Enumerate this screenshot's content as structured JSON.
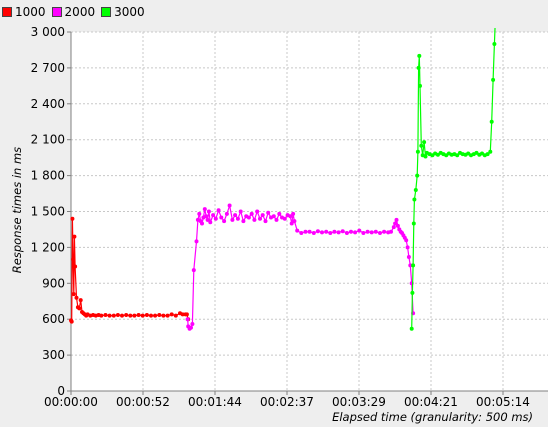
{
  "chart_data": {
    "type": "line",
    "ylabel": "Response times in ms",
    "xlabel": "Elapsed time (granularity: 500 ms)",
    "ylim": [
      0,
      3000
    ],
    "xlim": [
      0,
      364
    ],
    "yticks": [
      0,
      300,
      600,
      900,
      1200,
      1500,
      1800,
      2100,
      2400,
      2700,
      3000
    ],
    "ytick_labels": [
      "0",
      "300",
      "600",
      "900",
      "1 200",
      "1 500",
      "1 800",
      "2 100",
      "2 400",
      "2 700",
      "3 000"
    ],
    "xtick_labels": [
      "00:00:00",
      "00:00:52",
      "00:01:44",
      "00:02:37",
      "00:03:29",
      "00:04:21",
      "00:05:14"
    ],
    "grid": true,
    "legend_position": "top-left",
    "series": [
      {
        "name": "1000",
        "color": "#ff0000",
        "x": [
          0,
          0.5,
          1,
          1.5,
          2,
          2.5,
          3,
          4,
          5,
          6,
          7,
          8,
          9,
          10,
          11,
          12,
          14,
          16,
          18,
          20,
          22,
          25,
          28,
          31,
          34,
          37,
          40,
          43,
          46,
          49,
          52,
          55,
          58,
          61,
          64,
          67,
          70,
          73,
          76,
          79,
          81,
          83,
          84,
          85
        ],
        "y": [
          590,
          580,
          1440,
          1100,
          810,
          1290,
          1040,
          780,
          700,
          690,
          760,
          660,
          650,
          640,
          630,
          640,
          630,
          635,
          630,
          635,
          630,
          635,
          630,
          630,
          635,
          630,
          635,
          630,
          630,
          635,
          630,
          635,
          630,
          630,
          635,
          630,
          630,
          640,
          630,
          650,
          640,
          640,
          640,
          600
        ]
      },
      {
        "name": "2000",
        "color": "#ff00ff",
        "x": [
          84.5,
          85,
          86,
          87,
          88,
          89,
          91,
          92,
          93,
          94,
          95,
          96,
          97,
          98,
          99,
          100,
          101,
          103,
          105,
          107,
          109,
          111,
          113,
          115,
          117,
          119,
          121,
          123,
          125,
          127,
          129,
          131,
          133,
          135,
          137,
          139,
          141,
          143,
          145,
          147,
          149,
          151,
          153,
          155,
          157,
          159,
          160,
          161,
          162,
          164,
          167,
          170,
          173,
          176,
          179,
          182,
          185,
          188,
          191,
          194,
          197,
          200,
          203,
          206,
          209,
          212,
          215,
          218,
          221,
          224,
          227,
          230,
          232,
          234,
          235,
          236,
          237,
          238,
          239,
          240,
          241,
          242,
          243,
          244,
          245,
          246,
          247,
          248
        ],
        "y": [
          600,
          540,
          520,
          530,
          560,
          1010,
          1250,
          1430,
          1480,
          1420,
          1400,
          1450,
          1520,
          1460,
          1430,
          1500,
          1410,
          1470,
          1440,
          1510,
          1450,
          1420,
          1480,
          1550,
          1430,
          1470,
          1440,
          1500,
          1420,
          1460,
          1450,
          1480,
          1430,
          1500,
          1440,
          1470,
          1420,
          1490,
          1450,
          1460,
          1430,
          1480,
          1450,
          1440,
          1470,
          1460,
          1400,
          1480,
          1420,
          1340,
          1320,
          1330,
          1330,
          1320,
          1335,
          1325,
          1330,
          1320,
          1330,
          1325,
          1335,
          1320,
          1330,
          1325,
          1340,
          1320,
          1330,
          1325,
          1330,
          1320,
          1330,
          1325,
          1330,
          1370,
          1400,
          1430,
          1380,
          1350,
          1330,
          1320,
          1300,
          1280,
          1260,
          1200,
          1120,
          1050,
          900,
          650
        ]
      },
      {
        "name": "3000",
        "color": "#00ff00",
        "x": [
          247,
          247.5,
          248,
          248.5,
          249,
          250,
          251,
          251.5,
          252,
          252.5,
          253,
          254,
          255,
          256,
          257,
          258,
          260,
          262,
          264,
          266,
          268,
          270,
          272,
          274,
          276,
          278,
          280,
          282,
          284,
          286,
          288,
          290,
          292,
          294,
          296,
          298,
          300,
          302,
          304,
          305,
          306,
          307,
          308
        ],
        "y": [
          520,
          820,
          1050,
          1400,
          1600,
          1680,
          1800,
          2000,
          2700,
          2800,
          2550,
          2050,
          1970,
          2080,
          1960,
          1990,
          1980,
          1970,
          1985,
          1975,
          1990,
          1980,
          1970,
          1985,
          1975,
          1980,
          1970,
          1990,
          1980,
          1975,
          1985,
          1970,
          1980,
          1990,
          1975,
          1985,
          1970,
          1980,
          2000,
          2250,
          2600,
          2900,
          3200
        ]
      }
    ]
  }
}
